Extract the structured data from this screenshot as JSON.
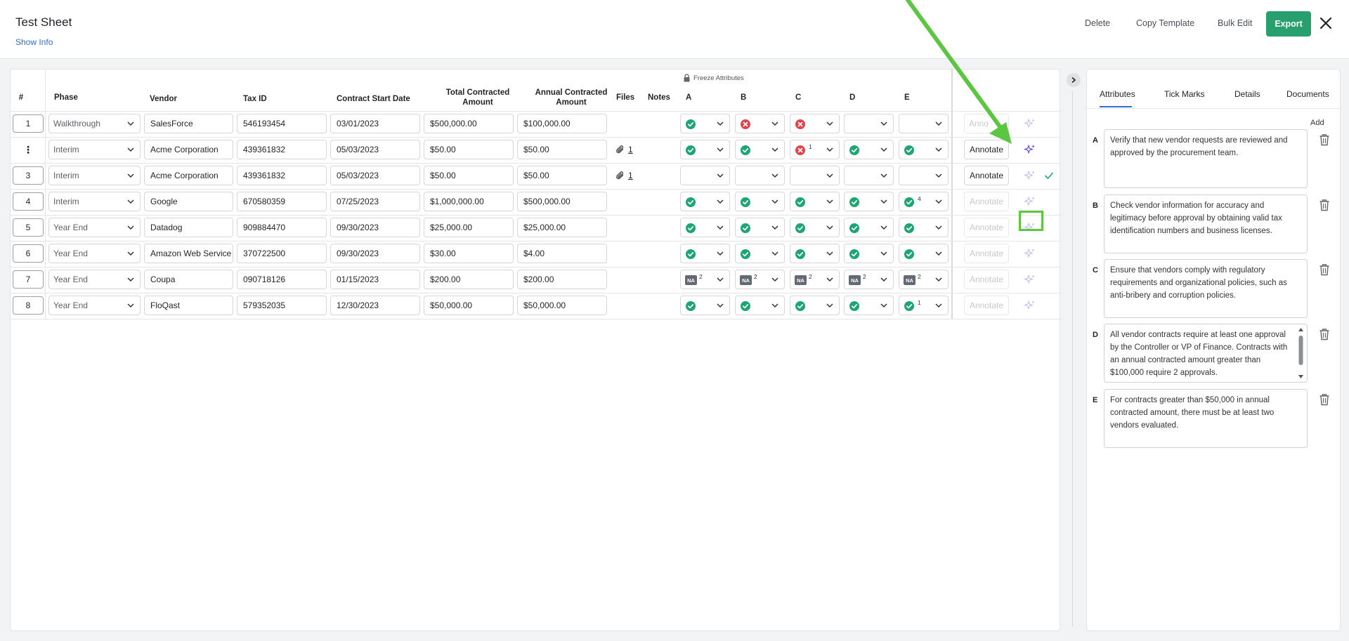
{
  "header": {
    "title": "Test Sheet",
    "show_info": "Show Info",
    "delete": "Delete",
    "copy_template": "Copy Template",
    "bulk_edit": "Bulk Edit",
    "export": "Export"
  },
  "table": {
    "columns": {
      "num": "#",
      "phase": "Phase",
      "vendor": "Vendor",
      "tax_id": "Tax ID",
      "start_date": "Contract Start Date",
      "total_line1": "Total Contracted",
      "total_line2": "Amount",
      "annual_line1": "Annual Contracted",
      "annual_line2": "Amount",
      "files": "Files",
      "notes": "Notes",
      "a": "A",
      "b": "B",
      "c": "C",
      "d": "D",
      "e": "E"
    },
    "freeze_label": "Freeze Attributes",
    "annotate_label": "Annotate",
    "annotate_partial": "Anno",
    "rows": [
      {
        "num": "1",
        "phase": "Walkthrough",
        "vendor": "SalesForce",
        "tax_id": "546193454",
        "date": "03/01/2023",
        "total": "$500,000.00",
        "annual": "$100,000.00",
        "files": "",
        "a": "check",
        "b": "x",
        "c": "x",
        "d": "",
        "e": "",
        "sup": [
          "",
          "",
          "",
          "",
          ""
        ]
      },
      {
        "num": "⋮",
        "phase": "Interim",
        "vendor": "Acme Corporation",
        "tax_id": "439361832",
        "date": "05/03/2023",
        "total": "$50.00",
        "annual": "$50.00",
        "files": "1",
        "a": "check",
        "b": "check",
        "c": "x",
        "d": "check",
        "e": "check",
        "sup": [
          "",
          "",
          "1",
          "",
          ""
        ]
      },
      {
        "num": "3",
        "phase": "Interim",
        "vendor": "Acme Corporation",
        "tax_id": "439361832",
        "date": "05/03/2023",
        "total": "$50.00",
        "annual": "$50.00",
        "files": "1",
        "a": "",
        "b": "",
        "c": "",
        "d": "",
        "e": "",
        "sup": [
          "",
          "",
          "",
          "",
          ""
        ]
      },
      {
        "num": "4",
        "phase": "Interim",
        "vendor": "Google",
        "tax_id": "670580359",
        "date": "07/25/2023",
        "total": "$1,000,000.00",
        "annual": "$500,000.00",
        "files": "",
        "a": "check",
        "b": "check",
        "c": "check",
        "d": "check",
        "e": "check",
        "sup": [
          "",
          "",
          "",
          "",
          "4"
        ]
      },
      {
        "num": "5",
        "phase": "Year End",
        "vendor": "Datadog",
        "tax_id": "909884470",
        "date": "09/30/2023",
        "total": "$25,000.00",
        "annual": "$25,000.00",
        "files": "",
        "a": "check",
        "b": "check",
        "c": "check",
        "d": "check",
        "e": "check",
        "sup": [
          "",
          "",
          "",
          "",
          ""
        ]
      },
      {
        "num": "6",
        "phase": "Year End",
        "vendor": "Amazon Web Service",
        "tax_id": "370722500",
        "date": "09/30/2023",
        "total": "$30.00",
        "annual": "$4.00",
        "files": "",
        "a": "check",
        "b": "check",
        "c": "check",
        "d": "check",
        "e": "check",
        "sup": [
          "",
          "",
          "",
          "",
          ""
        ]
      },
      {
        "num": "7",
        "phase": "Year End",
        "vendor": "Coupa",
        "tax_id": "090718126",
        "date": "01/15/2023",
        "total": "$200.00",
        "annual": "$200.00",
        "files": "",
        "a": "na",
        "b": "na",
        "c": "na",
        "d": "na",
        "e": "na",
        "sup": [
          "2",
          "2",
          "2",
          "2",
          "2"
        ]
      },
      {
        "num": "8",
        "phase": "Year End",
        "vendor": "FloQast",
        "tax_id": "579352035",
        "date": "12/30/2023",
        "total": "$50,000.00",
        "annual": "$50,000.00",
        "files": "",
        "a": "check",
        "b": "check",
        "c": "check",
        "d": "check",
        "e": "check",
        "sup": [
          "",
          "",
          "",
          "",
          "1"
        ]
      }
    ]
  },
  "sidebar": {
    "tabs": [
      "Attributes",
      "Tick Marks",
      "Details",
      "Documents"
    ],
    "add": "Add",
    "na_label": "NA",
    "attributes": [
      {
        "label": "A",
        "text": "Verify that new vendor requests are reviewed and approved by the procurement team."
      },
      {
        "label": "B",
        "text": "Check vendor information for accuracy and legitimacy before approval by obtaining valid tax identification numbers and business licenses."
      },
      {
        "label": "C",
        "text": "Ensure that vendors comply with regulatory requirements and organizational policies, such as anti-bribery and corruption policies."
      },
      {
        "label": "D",
        "text": "All vendor contracts require at least one approval by the Controller or VP of Finance. Contracts with an annual contracted amount greater than $100,000 require 2 approvals."
      },
      {
        "label": "E",
        "text": "For contracts greater than $50,000 in annual contracted amount, there must be at least two vendors evaluated."
      }
    ]
  },
  "colors": {
    "accent": "#28a06e",
    "link": "#2f6fd6",
    "check": "#1ea672",
    "cross": "#e0474c",
    "highlight": "#5cc642",
    "spark": "#6b4fd8"
  }
}
